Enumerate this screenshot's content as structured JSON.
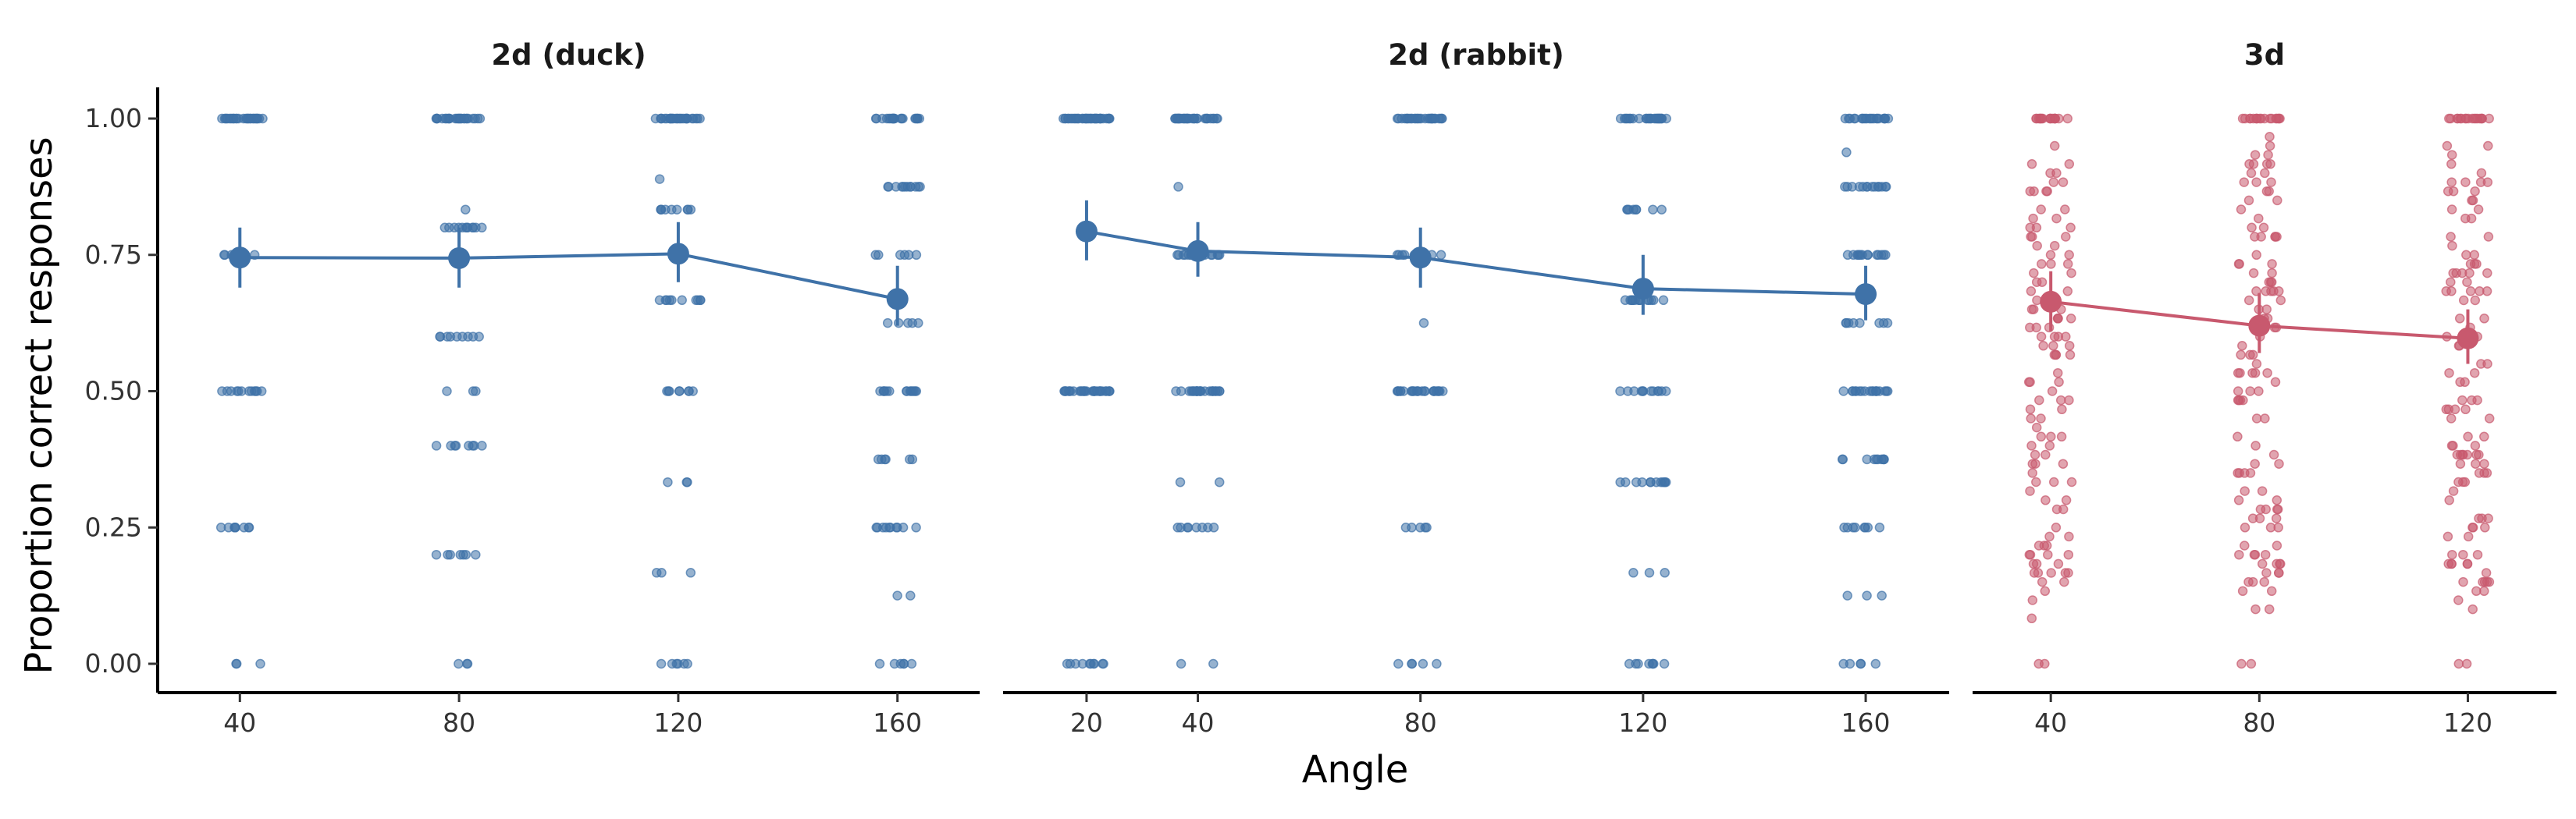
{
  "chart_data": {
    "type": "scatter",
    "xlabel": "Angle",
    "ylabel": "Proportion correct responses",
    "y_ticks": [
      "0.00",
      "0.25",
      "0.50",
      "0.75",
      "1.00"
    ],
    "ylim": [
      0,
      1
    ],
    "jitter_levels_note": "raw points are jittered horizontally around each angle",
    "panels": [
      {
        "title": "2d (duck)",
        "color": "#3f72a8",
        "x_ticks": [
          40,
          80,
          120,
          160
        ],
        "xlim": [
          25,
          175
        ],
        "means": [
          {
            "x": 40,
            "y": 0.745,
            "lo": 0.69,
            "hi": 0.8
          },
          {
            "x": 80,
            "y": 0.744,
            "lo": 0.69,
            "hi": 0.8
          },
          {
            "x": 120,
            "y": 0.752,
            "lo": 0.7,
            "hi": 0.81
          },
          {
            "x": 160,
            "y": 0.669,
            "lo": 0.62,
            "hi": 0.73
          }
        ],
        "points": [
          {
            "x": 40,
            "levels": [
              [
                1.0,
                30
              ],
              [
                0.75,
                6
              ],
              [
                0.5,
                12
              ],
              [
                0.25,
                8
              ],
              [
                0.0,
                3
              ]
            ]
          },
          {
            "x": 80,
            "levels": [
              [
                1.0,
                28
              ],
              [
                0.833,
                1
              ],
              [
                0.8,
                12
              ],
              [
                0.6,
                9
              ],
              [
                0.5,
                3
              ],
              [
                0.4,
                8
              ],
              [
                0.2,
                7
              ],
              [
                0.0,
                3
              ]
            ]
          },
          {
            "x": 120,
            "levels": [
              [
                1.0,
                30
              ],
              [
                0.889,
                1
              ],
              [
                0.833,
                9
              ],
              [
                0.667,
                10
              ],
              [
                0.5,
                8
              ],
              [
                0.333,
                3
              ],
              [
                0.167,
                3
              ],
              [
                0.0,
                6
              ]
            ]
          },
          {
            "x": 160,
            "levels": [
              [
                1.0,
                22
              ],
              [
                0.875,
                12
              ],
              [
                0.75,
                6
              ],
              [
                0.625,
                5
              ],
              [
                0.5,
                14
              ],
              [
                0.375,
                6
              ],
              [
                0.25,
                10
              ],
              [
                0.125,
                2
              ],
              [
                0.0,
                6
              ]
            ]
          }
        ]
      },
      {
        "title": "2d (rabbit)",
        "color": "#3f72a8",
        "x_ticks": [
          20,
          40,
          80,
          120,
          160
        ],
        "xlim": [
          5,
          175
        ],
        "means": [
          {
            "x": 20,
            "y": 0.793,
            "lo": 0.74,
            "hi": 0.85
          },
          {
            "x": 40,
            "y": 0.757,
            "lo": 0.71,
            "hi": 0.81
          },
          {
            "x": 80,
            "y": 0.745,
            "lo": 0.69,
            "hi": 0.8
          },
          {
            "x": 120,
            "y": 0.688,
            "lo": 0.64,
            "hi": 0.75
          },
          {
            "x": 160,
            "y": 0.678,
            "lo": 0.63,
            "hi": 0.73
          }
        ],
        "points": [
          {
            "x": 20,
            "levels": [
              [
                1.0,
                40
              ],
              [
                0.5,
                30
              ],
              [
                0.0,
                10
              ]
            ]
          },
          {
            "x": 40,
            "levels": [
              [
                1.0,
                34
              ],
              [
                0.875,
                1
              ],
              [
                0.75,
                16
              ],
              [
                0.5,
                26
              ],
              [
                0.333,
                2
              ],
              [
                0.25,
                8
              ],
              [
                0.0,
                2
              ]
            ]
          },
          {
            "x": 80,
            "levels": [
              [
                1.0,
                30
              ],
              [
                0.75,
                12
              ],
              [
                0.625,
                1
              ],
              [
                0.5,
                24
              ],
              [
                0.25,
                5
              ],
              [
                0.0,
                5
              ]
            ]
          },
          {
            "x": 120,
            "levels": [
              [
                1.0,
                28
              ],
              [
                0.833,
                8
              ],
              [
                0.667,
                14
              ],
              [
                0.5,
                12
              ],
              [
                0.333,
                12
              ],
              [
                0.167,
                3
              ],
              [
                0.0,
                8
              ]
            ]
          },
          {
            "x": 160,
            "levels": [
              [
                1.0,
                22
              ],
              [
                0.938,
                1
              ],
              [
                0.875,
                14
              ],
              [
                0.75,
                14
              ],
              [
                0.625,
                8
              ],
              [
                0.5,
                18
              ],
              [
                0.375,
                10
              ],
              [
                0.25,
                8
              ],
              [
                0.125,
                3
              ],
              [
                0.0,
                5
              ]
            ]
          }
        ]
      },
      {
        "title": "3d",
        "color": "#c8596e",
        "x_ticks": [
          40,
          80,
          120
        ],
        "xlim": [
          25,
          137
        ],
        "means": [
          {
            "x": 40,
            "y": 0.664,
            "lo": 0.61,
            "hi": 0.72
          },
          {
            "x": 80,
            "y": 0.62,
            "lo": 0.57,
            "hi": 0.68
          },
          {
            "x": 120,
            "y": 0.597,
            "lo": 0.55,
            "hi": 0.65
          }
        ],
        "points": [
          {
            "x": 40,
            "n": 130
          },
          {
            "x": 80,
            "n": 130
          },
          {
            "x": 120,
            "n": 130
          }
        ]
      }
    ]
  }
}
